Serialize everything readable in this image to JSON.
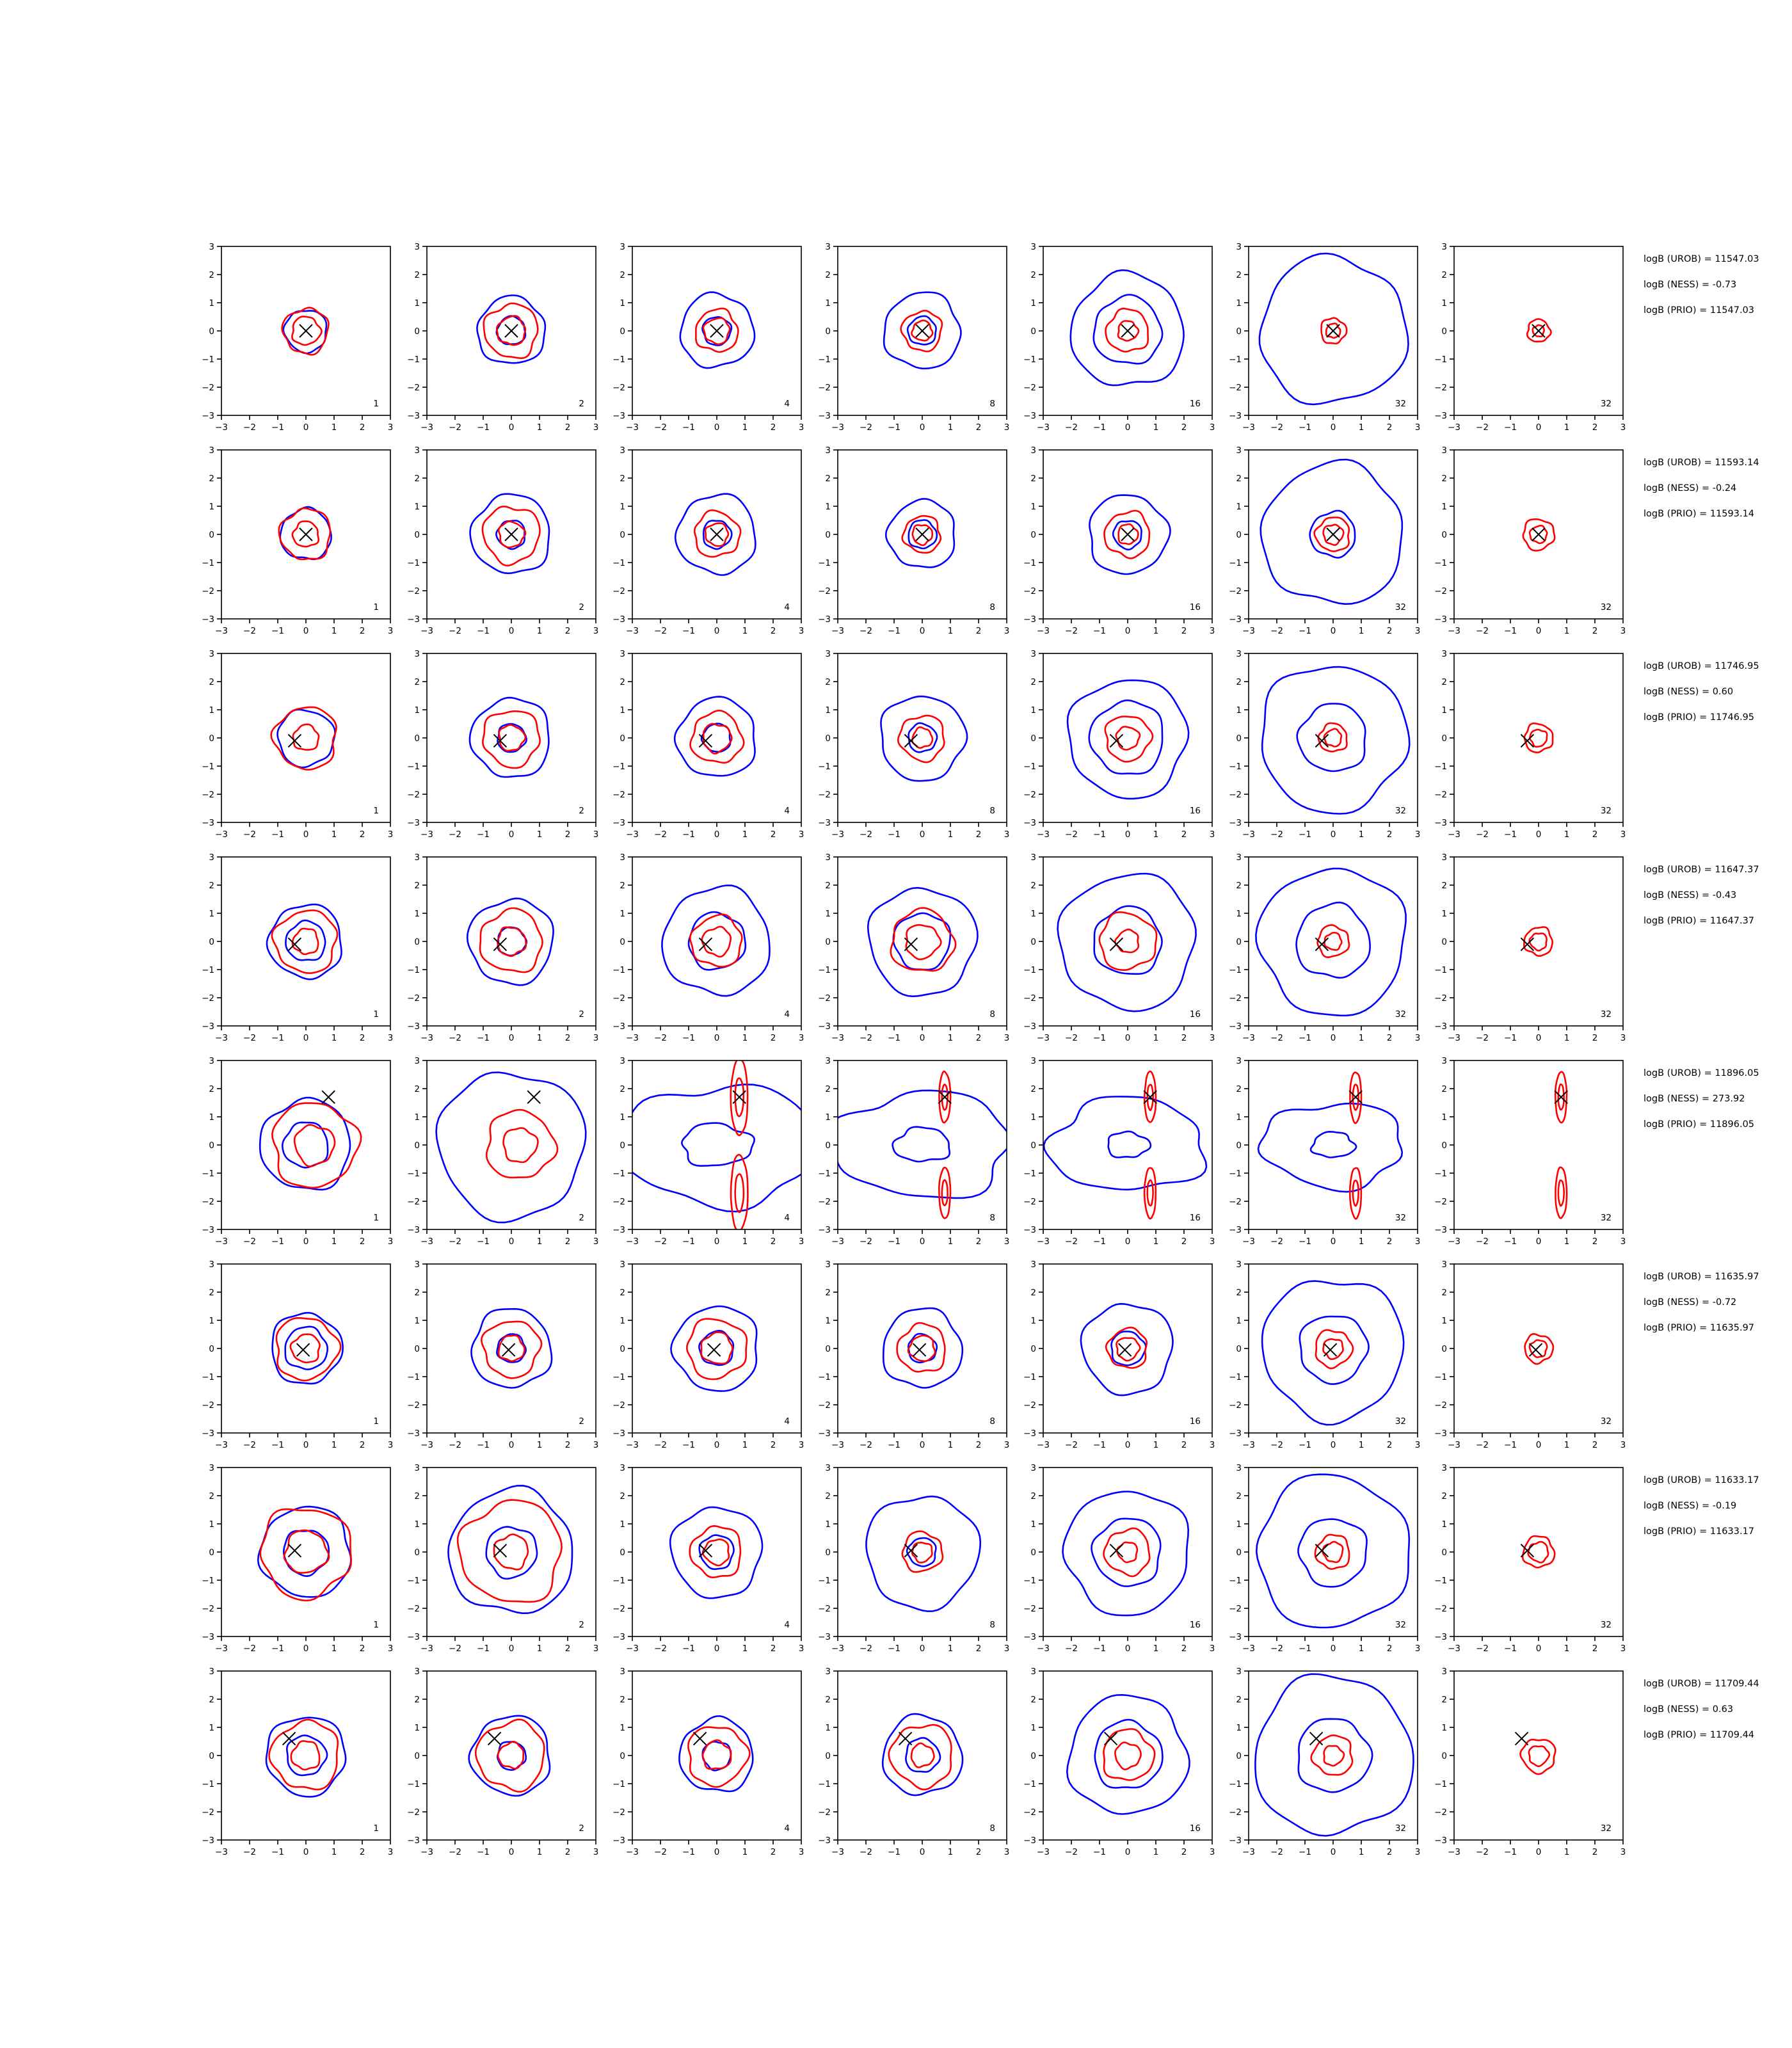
{
  "chart_data": {
    "type": "contour-grid",
    "title": "",
    "xlim": [
      -3,
      3
    ],
    "ylim": [
      -3,
      3
    ],
    "ticks": [
      -3,
      -2,
      -1,
      0,
      1,
      2,
      3
    ],
    "tick_labels": [
      "−3",
      "−2",
      "−1",
      "0",
      "1",
      "2",
      "3"
    ],
    "grid": false,
    "series_colors": {
      "blue": "#0000ff",
      "red": "#ff0000",
      "marker": "#000000"
    },
    "column_labels": [
      "1",
      "2",
      "4",
      "8",
      "16",
      "32",
      "32"
    ],
    "rows": [
      {
        "marker": [
          0.0,
          0.0
        ],
        "logb": {
          "urob": "logB (UROB) = 11547.03",
          "ness": "logB (NESS) = -0.73",
          "prio": "logB (PRIO) = 11547.03"
        },
        "panels": [
          {
            "blue": [
              0.75
            ],
            "red": [
              0.5,
              0.8
            ]
          },
          {
            "blue": [
              0.5,
              1.2
            ],
            "red": [
              0.5,
              0.95
            ]
          },
          {
            "blue": [
              0.5,
              1.3
            ],
            "red": [
              0.45,
              0.75
            ]
          },
          {
            "blue": [
              0.5,
              1.35
            ],
            "red": [
              0.35,
              0.7
            ]
          },
          {
            "blue": [
              1.2,
              2.0
            ],
            "red": [
              0.35,
              0.75
            ]
          },
          {
            "blue": [
              2.6
            ],
            "red": [
              0.25,
              0.45
            ]
          },
          {
            "blue": [],
            "red": [
              0.2,
              0.4
            ]
          }
        ]
      },
      {
        "marker": [
          0.0,
          0.0
        ],
        "logb": {
          "urob": "logB (UROB) = 11593.14",
          "ness": "logB (NESS) = -0.24",
          "prio": "logB (PRIO) = 11593.14"
        },
        "panels": [
          {
            "blue": [
              0.9
            ],
            "red": [
              0.45,
              0.9
            ]
          },
          {
            "blue": [
              0.5,
              1.4
            ],
            "red": [
              0.45,
              1.0
            ]
          },
          {
            "blue": [
              0.5,
              1.4
            ],
            "red": [
              0.4,
              0.8
            ]
          },
          {
            "blue": [
              0.5,
              1.2
            ],
            "red": [
              0.35,
              0.65
            ]
          },
          {
            "blue": [
              0.5,
              1.4
            ],
            "red": [
              0.35,
              0.8
            ]
          },
          {
            "blue": [
              0.8,
              2.5
            ],
            "red": [
              0.35,
              0.6
            ]
          },
          {
            "blue": [],
            "red": [
              0.3,
              0.55
            ]
          }
        ]
      },
      {
        "marker": [
          -0.4,
          -0.1
        ],
        "logb": {
          "urob": "logB (UROB) = 11746.95",
          "ness": "logB (NESS) = 0.60",
          "prio": "logB (PRIO) = 11746.95"
        },
        "panels": [
          {
            "blue": [
              1.0
            ],
            "red": [
              0.45,
              1.1
            ]
          },
          {
            "blue": [
              0.5,
              1.4
            ],
            "red": [
              0.45,
              1.0
            ]
          },
          {
            "blue": [
              0.5,
              1.4
            ],
            "red": [
              0.5,
              0.9
            ]
          },
          {
            "blue": [
              0.5,
              1.5
            ],
            "red": [
              0.35,
              0.8
            ]
          },
          {
            "blue": [
              1.3,
              2.1
            ],
            "red": [
              0.4,
              0.8
            ]
          },
          {
            "blue": [
              1.2,
              2.6
            ],
            "red": [
              0.3,
              0.5
            ]
          },
          {
            "blue": [],
            "red": [
              0.3,
              0.5
            ]
          }
        ]
      },
      {
        "marker": [
          -0.4,
          -0.1
        ],
        "logb": {
          "urob": "logB (UROB) = 11647.37",
          "ness": "logB (NESS) = -0.43",
          "prio": "logB (PRIO) = 11647.37"
        },
        "panels": [
          {
            "blue": [
              0.7,
              1.3
            ],
            "red": [
              0.45,
              1.1
            ]
          },
          {
            "blue": [
              0.5,
              1.5
            ],
            "red": [
              0.5,
              1.1
            ]
          },
          {
            "blue": [
              1.0,
              1.9
            ],
            "red": [
              0.5,
              0.9
            ]
          },
          {
            "blue": [
              1.0,
              1.9
            ],
            "red": [
              0.6,
              1.1
            ]
          },
          {
            "blue": [
              1.2,
              2.4
            ],
            "red": [
              0.4,
              1.0
            ]
          },
          {
            "blue": [
              1.3,
              2.6
            ],
            "red": [
              0.3,
              0.55
            ]
          },
          {
            "blue": [],
            "red": [
              0.3,
              0.5
            ]
          }
        ]
      },
      {
        "marker": [
          0.8,
          1.7
        ],
        "logb": {
          "urob": "logB (UROB) = 11896.05",
          "ness": "logB (NESS) = 273.92",
          "prio": "logB (PRIO) = 11896.05"
        },
        "panels": [
          {
            "blue": [
              0.8,
              1.6
            ],
            "red": [
              0.7,
              1.5
            ]
          },
          {
            "blue": [
              2.6
            ],
            "red": [
              0.6,
              1.2
            ]
          },
          {
            "blue": [
              1.0,
              2.8
            ],
            "red": [
              0.15,
              0.3
            ]
          },
          {
            "blue": [
              0.8,
              2.5
            ],
            "red": [
              0.1,
              0.2
            ]
          },
          {
            "blue": [
              0.6,
              2.2
            ],
            "red": [
              0.1,
              0.2
            ]
          },
          {
            "blue": [
              0.6,
              2.0
            ],
            "red": [
              0.1,
              0.2
            ]
          },
          {
            "blue": [],
            "red": [
              0.1,
              0.2
            ]
          }
        ]
      },
      {
        "marker": [
          -0.1,
          -0.05
        ],
        "logb": {
          "urob": "logB (UROB) = 11635.97",
          "ness": "logB (NESS) = -0.72",
          "prio": "logB (PRIO) = 11635.97"
        },
        "panels": [
          {
            "blue": [
              0.75,
              1.25
            ],
            "red": [
              0.5,
              1.1
            ]
          },
          {
            "blue": [
              0.5,
              1.4
            ],
            "red": [
              0.45,
              1.0
            ]
          },
          {
            "blue": [
              0.6,
              1.5
            ],
            "red": [
              0.55,
              1.05
            ]
          },
          {
            "blue": [
              0.5,
              1.4
            ],
            "red": [
              0.45,
              0.85
            ]
          },
          {
            "blue": [
              0.6,
              1.6
            ],
            "red": [
              0.4,
              0.7
            ]
          },
          {
            "blue": [
              1.2,
              2.5
            ],
            "red": [
              0.35,
              0.65
            ]
          },
          {
            "blue": [],
            "red": [
              0.3,
              0.5
            ]
          }
        ]
      },
      {
        "marker": [
          -0.4,
          0.05
        ],
        "logb": {
          "urob": "logB (UROB) = 11633.17",
          "ness": "logB (NESS) = -0.19",
          "prio": "logB (PRIO) = 11633.17"
        },
        "panels": [
          {
            "blue": [
              0.8,
              1.6
            ],
            "red": [
              0.75,
              1.6
            ]
          },
          {
            "blue": [
              0.9,
              2.2
            ],
            "red": [
              0.6,
              1.8
            ]
          },
          {
            "blue": [
              0.6,
              1.6
            ],
            "red": [
              0.45,
              0.9
            ]
          },
          {
            "blue": [
              0.5,
              2.0
            ],
            "red": [
              0.35,
              0.7
            ]
          },
          {
            "blue": [
              1.2,
              2.2
            ],
            "red": [
              0.35,
              0.8
            ]
          },
          {
            "blue": [
              1.2,
              2.7
            ],
            "red": [
              0.35,
              0.6
            ]
          },
          {
            "blue": [],
            "red": [
              0.35,
              0.55
            ]
          }
        ]
      },
      {
        "marker": [
          -0.6,
          0.6
        ],
        "logb": {
          "urob": "logB (UROB) = 11709.44",
          "ness": "logB (NESS) = 0.63",
          "prio": "logB (PRIO) = 11709.44"
        },
        "panels": [
          {
            "blue": [
              0.7,
              1.4
            ],
            "red": [
              0.5,
              1.2
            ]
          },
          {
            "blue": [
              0.5,
              1.4
            ],
            "red": [
              0.45,
              1.2
            ]
          },
          {
            "blue": [
              0.5,
              1.3
            ],
            "red": [
              0.5,
              1.05
            ]
          },
          {
            "blue": [
              0.6,
              1.4
            ],
            "red": [
              0.4,
              1.1
            ]
          },
          {
            "blue": [
              1.2,
              2.1
            ],
            "red": [
              0.45,
              0.9
            ]
          },
          {
            "blue": [
              1.3,
              2.8
            ],
            "red": [
              0.35,
              0.7
            ]
          },
          {
            "blue": [],
            "red": [
              0.35,
              0.6
            ]
          }
        ]
      }
    ]
  }
}
